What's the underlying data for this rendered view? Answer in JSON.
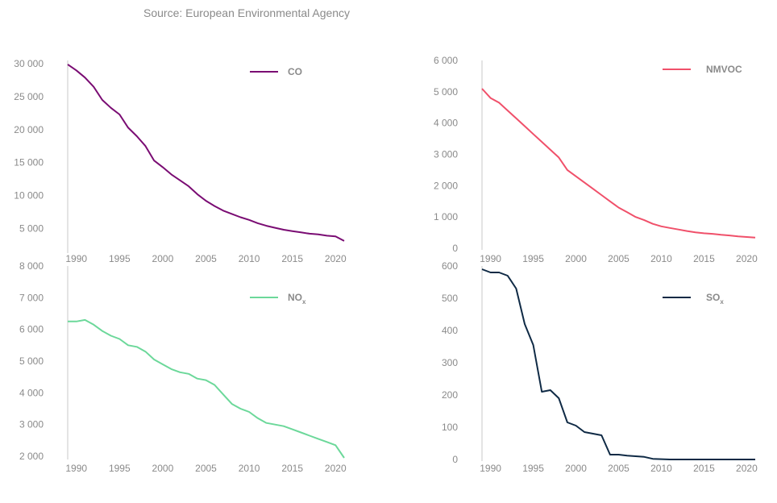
{
  "source_label": "Source: European Environmental Agency",
  "chart_data": [
    {
      "type": "line",
      "title": "",
      "series": [
        {
          "name": "CO",
          "color": "#7a0c73"
        }
      ],
      "x": [
        1989,
        1990,
        1991,
        1992,
        1993,
        1994,
        1995,
        1996,
        1997,
        1998,
        1999,
        2000,
        2001,
        2002,
        2003,
        2004,
        2005,
        2006,
        2007,
        2008,
        2009,
        2010,
        2011,
        2012,
        2013,
        2014,
        2015,
        2016,
        2017,
        2018,
        2019,
        2020,
        2021
      ],
      "y": [
        29900,
        29000,
        27900,
        26500,
        24500,
        23300,
        22300,
        20300,
        19000,
        17500,
        15300,
        14300,
        13200,
        12300,
        11400,
        10200,
        9200,
        8400,
        7700,
        7200,
        6700,
        6300,
        5800,
        5400,
        5100,
        4800,
        4600,
        4400,
        4200,
        4100,
        3900,
        3800,
        3100
      ],
      "yticks": [
        5000,
        10000,
        15000,
        20000,
        25000,
        30000
      ],
      "ytick_labels": [
        "5 000",
        "10 000",
        "15 000",
        "20 000",
        "25 000",
        "30 000"
      ],
      "xticks": [
        1990,
        1995,
        2000,
        2005,
        2010,
        2015,
        2020
      ],
      "xtick_labels": [
        "1990",
        "1995",
        "2000",
        "2005",
        "2010",
        "2015",
        "2020"
      ],
      "xlim": [
        1989,
        2021
      ],
      "ylim": [
        1500,
        30500
      ],
      "legend": "top-right"
    },
    {
      "type": "line",
      "title": "",
      "series": [
        {
          "name": "NMVOC",
          "color": "#f0506a"
        }
      ],
      "x": [
        1989,
        1990,
        1991,
        1992,
        1993,
        1994,
        1995,
        1996,
        1997,
        1998,
        1999,
        2000,
        2001,
        2002,
        2003,
        2004,
        2005,
        2006,
        2007,
        2008,
        2009,
        2010,
        2011,
        2012,
        2013,
        2014,
        2015,
        2016,
        2017,
        2018,
        2019,
        2020,
        2021
      ],
      "y": [
        5100,
        4800,
        4650,
        4400,
        4150,
        3900,
        3650,
        3400,
        3150,
        2900,
        2500,
        2300,
        2100,
        1900,
        1700,
        1500,
        1300,
        1150,
        1000,
        900,
        780,
        700,
        650,
        600,
        550,
        510,
        480,
        460,
        430,
        410,
        380,
        360,
        340
      ],
      "yticks": [
        0,
        1000,
        2000,
        3000,
        4000,
        5000,
        6000
      ],
      "ytick_labels": [
        "0",
        "1 000",
        "2 000",
        "3 000",
        "4 000",
        "5 000",
        "6 000"
      ],
      "xticks": [
        1990,
        1995,
        2000,
        2005,
        2010,
        2015,
        2020
      ],
      "xtick_labels": [
        "1990",
        "1995",
        "2000",
        "2005",
        "2010",
        "2015",
        "2020"
      ],
      "xlim": [
        1989,
        2021
      ],
      "ylim": [
        0,
        6000
      ],
      "legend": "top-right"
    },
    {
      "type": "line",
      "title": "",
      "series": [
        {
          "name": "NOx",
          "label_main": "NO",
          "label_sub": "x",
          "color": "#6cd89a"
        }
      ],
      "x": [
        1989,
        1990,
        1991,
        1992,
        1993,
        1994,
        1995,
        1996,
        1997,
        1998,
        1999,
        2000,
        2001,
        2002,
        2003,
        2004,
        2005,
        2006,
        2007,
        2008,
        2009,
        2010,
        2011,
        2012,
        2013,
        2014,
        2015,
        2016,
        2017,
        2018,
        2019,
        2020,
        2021
      ],
      "y": [
        6250,
        6250,
        6300,
        6150,
        5950,
        5800,
        5700,
        5500,
        5450,
        5300,
        5050,
        4900,
        4750,
        4650,
        4600,
        4450,
        4400,
        4250,
        3950,
        3650,
        3500,
        3400,
        3200,
        3050,
        3000,
        2950,
        2850,
        2750,
        2650,
        2550,
        2450,
        2350,
        1950
      ],
      "yticks": [
        2000,
        3000,
        4000,
        5000,
        6000,
        7000,
        8000
      ],
      "ytick_labels": [
        "2 000",
        "3 000",
        "4 000",
        "5 000",
        "6 000",
        "7 000",
        "8 000"
      ],
      "xticks": [
        1990,
        1995,
        2000,
        2005,
        2010,
        2015,
        2020
      ],
      "xtick_labels": [
        "1990",
        "1995",
        "2000",
        "2005",
        "2010",
        "2015",
        "2020"
      ],
      "xlim": [
        1989,
        2021
      ],
      "ylim": [
        1950,
        8000
      ],
      "legend": "top-right"
    },
    {
      "type": "line",
      "title": "",
      "series": [
        {
          "name": "SOx",
          "label_main": "SO",
          "label_sub": "x",
          "color": "#0f2a45"
        }
      ],
      "x": [
        1989,
        1990,
        1991,
        1992,
        1993,
        1994,
        1995,
        1996,
        1997,
        1998,
        1999,
        2000,
        2001,
        2002,
        2003,
        2004,
        2005,
        2006,
        2007,
        2008,
        2009,
        2010,
        2011,
        2012,
        2013,
        2014,
        2015,
        2016,
        2017,
        2018,
        2019,
        2020,
        2021
      ],
      "y": [
        590,
        580,
        580,
        570,
        530,
        420,
        355,
        210,
        215,
        190,
        115,
        105,
        85,
        80,
        75,
        15,
        15,
        12,
        10,
        8,
        2,
        1,
        0,
        0,
        0,
        0,
        0,
        0,
        0,
        0,
        0,
        0,
        0
      ],
      "yticks": [
        0,
        100,
        200,
        300,
        400,
        500,
        600
      ],
      "ytick_labels": [
        "0",
        "100",
        "200",
        "300",
        "400",
        "500",
        "600"
      ],
      "xticks": [
        1990,
        1995,
        2000,
        2005,
        2010,
        2015,
        2020
      ],
      "xtick_labels": [
        "1990",
        "1995",
        "2000",
        "2005",
        "2010",
        "2015",
        "2020"
      ],
      "xlim": [
        1989,
        2021
      ],
      "ylim": [
        0,
        600
      ],
      "legend": "top-right"
    }
  ]
}
